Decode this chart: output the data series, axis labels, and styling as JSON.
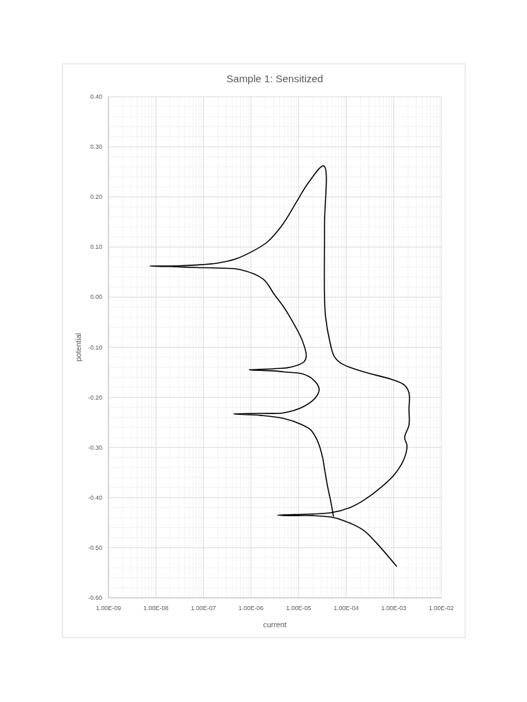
{
  "chart_data": {
    "type": "line",
    "title": "Sample 1: Sensitized",
    "xlabel": "current",
    "ylabel": "potential",
    "log": "x",
    "grid": true,
    "marker": "none",
    "line_style": "solid",
    "xlim": [
      1e-09,
      0.01
    ],
    "ylim": [
      -0.6,
      0.4
    ],
    "xticks": [
      {
        "value": 1e-09,
        "label": "1.00E-09"
      },
      {
        "value": 1e-08,
        "label": "1.00E-08"
      },
      {
        "value": 1e-07,
        "label": "1.00E-07"
      },
      {
        "value": 1e-06,
        "label": "1.00E-06"
      },
      {
        "value": 1e-05,
        "label": "1.00E-05"
      },
      {
        "value": 0.0001,
        "label": "1.00E-04"
      },
      {
        "value": 0.001,
        "label": "1.00E-03"
      },
      {
        "value": 0.01,
        "label": "1.00E-02"
      }
    ],
    "yticks": [
      {
        "value": -0.6,
        "label": "-0.60"
      },
      {
        "value": -0.5,
        "label": "-0.50"
      },
      {
        "value": -0.4,
        "label": "-0.40"
      },
      {
        "value": -0.3,
        "label": "-0.30"
      },
      {
        "value": -0.2,
        "label": "-0.20"
      },
      {
        "value": -0.1,
        "label": "-0.10"
      },
      {
        "value": 0,
        "label": "0.00"
      },
      {
        "value": 0.1,
        "label": "0.10"
      },
      {
        "value": 0.2,
        "label": "0.20"
      },
      {
        "value": 0.3,
        "label": "0.30"
      },
      {
        "value": 0.4,
        "label": "0.40"
      }
    ],
    "series": [
      {
        "color": "#000000",
        "x": [
          0.00115,
          0.00041,
          0.00023,
          9.5e-05,
          4.9e-05,
          2e-05,
          8.3e-06,
          3.6e-06,
          8.3e-06,
          4.9e-05,
          0.00012,
          0.00023,
          0.00057,
          0.0011,
          0.0017,
          0.0019,
          0.0017,
          0.0021,
          0.0021,
          0.0021,
          0.0017,
          0.00089,
          0.00023,
          7.8e-05,
          5.6e-05,
          4.5e-05,
          3.7e-05,
          3.5e-05,
          3.5e-05,
          3.4e-05,
          1.6e-05,
          9.3e-06,
          4.7e-06,
          2.2e-06,
          1.05e-06,
          4.7e-07,
          2e-07,
          6.8e-08,
          2.1e-08,
          7.4e-09,
          2.1e-08,
          6.8e-08,
          2e-07,
          5.9e-07,
          1.8e-06,
          3.1e-06,
          4.8e-06,
          6.6e-06,
          1.2e-05,
          1.45e-05,
          1.3e-05,
          6.6e-06,
          2.8e-06,
          9.1e-07,
          2.8e-06,
          6e-06,
          1.2e-05,
          2e-05,
          2.7e-05,
          2.3e-05,
          1.3e-05,
          4.8e-06,
          1.6e-06,
          4.3e-07,
          1.6e-06,
          4.8e-06,
          1.2e-05,
          1.8e-05,
          2.5e-05,
          3.2e-05,
          3.5e-05,
          4e-05,
          4.8e-05,
          5.4e-05
        ],
        "values": [
          -0.537,
          -0.488,
          -0.465,
          -0.447,
          -0.439,
          -0.436,
          -0.436,
          -0.435,
          -0.434,
          -0.43,
          -0.42,
          -0.406,
          -0.378,
          -0.351,
          -0.32,
          -0.296,
          -0.28,
          -0.255,
          -0.224,
          -0.191,
          -0.176,
          -0.164,
          -0.149,
          -0.132,
          -0.118,
          -0.087,
          -0.04,
          0.005,
          0.141,
          0.262,
          0.228,
          0.192,
          0.146,
          0.11,
          0.091,
          0.076,
          0.068,
          0.064,
          0.062,
          0.062,
          0.061,
          0.059,
          0.058,
          0.055,
          0.036,
          0.005,
          -0.019,
          -0.04,
          -0.087,
          -0.118,
          -0.129,
          -0.14,
          -0.143,
          -0.145,
          -0.147,
          -0.15,
          -0.153,
          -0.164,
          -0.183,
          -0.2,
          -0.218,
          -0.231,
          -0.232,
          -0.233,
          -0.236,
          -0.242,
          -0.255,
          -0.265,
          -0.287,
          -0.32,
          -0.342,
          -0.374,
          -0.41,
          -0.437
        ]
      }
    ]
  }
}
